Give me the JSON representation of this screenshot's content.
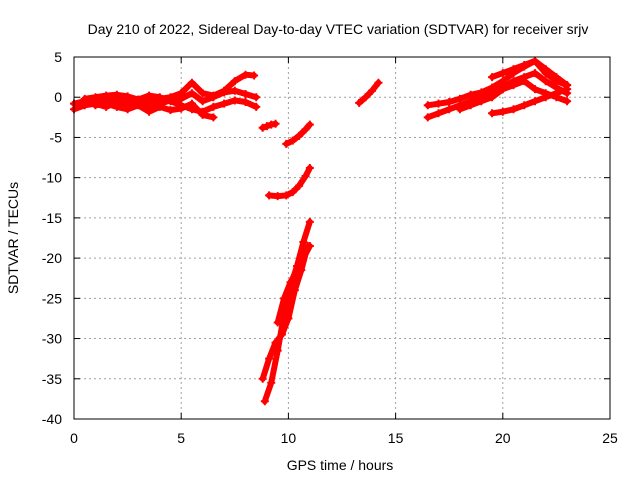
{
  "chart_data": {
    "type": "scatter",
    "title": "Day 210 of 2022, Sidereal Day-to-day VTEC variation (SDTVAR) for receiver srjv",
    "xlabel": "GPS time / hours",
    "ylabel": "SDTVAR / TECUs",
    "xlim": [
      0,
      25
    ],
    "ylim": [
      -40,
      5
    ],
    "x_ticks": [
      0,
      5,
      10,
      15,
      20,
      25
    ],
    "y_ticks": [
      5,
      0,
      -5,
      -10,
      -15,
      -20,
      -25,
      -30,
      -35,
      -40
    ],
    "x_tick_labels": [
      "0",
      "5",
      "10",
      "15",
      "20",
      "25"
    ],
    "y_tick_labels": [
      "5",
      "0",
      "-5",
      "-10",
      "-15",
      "-20",
      "-25",
      "-30",
      "-35",
      "-40"
    ],
    "grid": true,
    "marker_color": "#ff0000",
    "series": [
      {
        "x": [
          0.0,
          0.5,
          1.0,
          1.5,
          2.0,
          2.5,
          3.0,
          3.5,
          4.0,
          4.5,
          5.0,
          5.5,
          6.0,
          6.5,
          7.0,
          7.5,
          8.0,
          8.4
        ],
        "y": [
          -0.8,
          -0.5,
          -0.3,
          -0.6,
          -0.2,
          -0.5,
          -0.3,
          -0.6,
          -0.2,
          0.0,
          0.5,
          1.8,
          0.5,
          0.2,
          0.8,
          2.0,
          2.8,
          2.7
        ]
      },
      {
        "x": [
          0.0,
          0.5,
          1.0,
          1.5,
          2.0,
          2.5,
          3.0,
          3.5,
          4.0,
          4.5,
          5.0,
          5.5,
          6.0,
          6.5,
          7.0,
          7.5,
          8.0,
          8.5
        ],
        "y": [
          -1.5,
          -1.0,
          -0.8,
          -1.2,
          -0.6,
          -1.0,
          -0.5,
          -1.4,
          -0.8,
          -0.4,
          -0.2,
          0.5,
          -0.5,
          0.0,
          0.6,
          0.8,
          0.4,
          0.0
        ]
      },
      {
        "x": [
          0.5,
          1.0,
          1.5,
          2.0,
          2.5,
          3.0,
          3.5,
          4.0,
          4.5,
          5.0,
          5.5,
          6.0,
          6.5,
          7.0,
          7.5,
          8.0,
          8.5
        ],
        "y": [
          -0.2,
          0.0,
          0.2,
          0.3,
          0.1,
          -0.3,
          0.2,
          0.0,
          -0.5,
          -1.0,
          -1.5,
          -1.8,
          -1.2,
          -0.8,
          -0.4,
          -0.6,
          -1.2
        ]
      },
      {
        "x": [
          1.0,
          1.5,
          2.0,
          2.5,
          3.0,
          3.5,
          4.0,
          4.5,
          5.0,
          5.5,
          6.0,
          6.5
        ],
        "y": [
          -1.0,
          -0.8,
          -1.2,
          -1.5,
          -1.0,
          -1.8,
          -1.2,
          -1.6,
          -1.4,
          -0.8,
          -2.2,
          -2.5
        ]
      },
      {
        "x": [
          8.8,
          9.0,
          9.2,
          9.4
        ],
        "y": [
          -3.8,
          -3.6,
          -3.4,
          -3.3
        ]
      },
      {
        "x": [
          9.9,
          10.2,
          10.5,
          10.8,
          11.0
        ],
        "y": [
          -5.8,
          -5.4,
          -4.8,
          -4.0,
          -3.4
        ]
      },
      {
        "x": [
          9.1,
          9.5,
          9.9,
          10.2,
          10.5,
          10.8,
          11.0
        ],
        "y": [
          -12.2,
          -12.3,
          -12.2,
          -11.8,
          -11.0,
          -9.8,
          -8.8
        ]
      },
      {
        "x": [
          8.9,
          9.2,
          9.5,
          9.8,
          10.1,
          10.4,
          10.7,
          11.0
        ],
        "y": [
          -37.8,
          -35.5,
          -31.5,
          -27.0,
          -23.5,
          -21.0,
          -18.0,
          -15.5
        ]
      },
      {
        "x": [
          8.8,
          9.1,
          9.4,
          9.7,
          10.0,
          10.3,
          10.6,
          10.9
        ],
        "y": [
          -35.0,
          -32.5,
          -30.5,
          -29.5,
          -27.5,
          -24.0,
          -21.5,
          -18.5
        ]
      },
      {
        "x": [
          9.5,
          9.8,
          10.1,
          10.4,
          10.7,
          11.0
        ],
        "y": [
          -28.0,
          -25.0,
          -23.0,
          -21.5,
          -20.0,
          -18.5
        ]
      },
      {
        "x": [
          13.3,
          13.6,
          13.9,
          14.2
        ],
        "y": [
          -0.7,
          0.0,
          0.8,
          1.8
        ]
      },
      {
        "x": [
          16.5,
          17.0,
          17.5,
          18.0,
          18.5,
          19.0,
          19.5,
          20.0,
          20.5,
          21.0,
          21.5,
          22.0,
          22.5,
          23.0
        ],
        "y": [
          -1.0,
          -0.8,
          -0.6,
          -0.2,
          0.3,
          0.6,
          1.2,
          2.0,
          3.0,
          3.8,
          4.5,
          3.5,
          2.5,
          1.5
        ]
      },
      {
        "x": [
          16.5,
          17.0,
          17.5,
          18.0,
          18.5,
          19.0,
          19.5,
          20.0,
          20.5,
          21.0,
          21.5,
          22.0,
          22.5,
          23.0
        ],
        "y": [
          -2.5,
          -2.0,
          -1.5,
          -1.0,
          -0.5,
          0.0,
          0.5,
          1.2,
          2.0,
          2.5,
          3.0,
          2.0,
          1.2,
          0.5
        ]
      },
      {
        "x": [
          18.0,
          18.5,
          19.0,
          19.5,
          20.0,
          20.5,
          21.0,
          21.5,
          22.0,
          22.5,
          23.0
        ],
        "y": [
          -1.5,
          -1.0,
          -0.5,
          0.0,
          1.0,
          1.5,
          2.0,
          1.0,
          0.5,
          0.0,
          -0.5
        ]
      },
      {
        "x": [
          19.5,
          20.0,
          20.5,
          21.0,
          21.5,
          22.0,
          22.5,
          23.0
        ],
        "y": [
          -2.0,
          -1.8,
          -1.5,
          -1.0,
          -0.5,
          0.0,
          0.5,
          1.0
        ]
      },
      {
        "x": [
          19.5,
          20.0,
          20.5,
          21.0,
          21.5,
          22.0,
          22.5,
          23.0
        ],
        "y": [
          2.5,
          3.0,
          3.5,
          4.0,
          4.5,
          3.0,
          2.0,
          1.5
        ]
      }
    ]
  }
}
